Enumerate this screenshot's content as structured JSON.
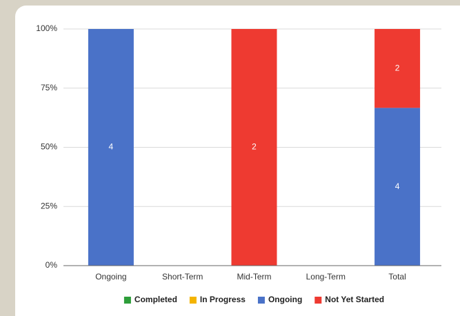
{
  "chart_data": {
    "type": "bar",
    "stacking": "percent",
    "categories": [
      "Ongoing",
      "Short-Term",
      "Mid-Term",
      "Long-Term",
      "Total"
    ],
    "series": [
      {
        "name": "Completed",
        "color": "#2e9e3a",
        "values": [
          0,
          0,
          0,
          0,
          0
        ]
      },
      {
        "name": "In Progress",
        "color": "#f4b400",
        "values": [
          0,
          0,
          0,
          0,
          0
        ]
      },
      {
        "name": "Ongoing",
        "color": "#4a72c8",
        "values": [
          4,
          0,
          0,
          0,
          4
        ]
      },
      {
        "name": "Not Yet Started",
        "color": "#ee3a31",
        "values": [
          0,
          0,
          2,
          0,
          2
        ]
      }
    ],
    "ylim": [
      0,
      100
    ],
    "yticks": [
      {
        "value": 0,
        "label": "0%"
      },
      {
        "value": 25,
        "label": "25%"
      },
      {
        "value": 50,
        "label": "50%"
      },
      {
        "value": 75,
        "label": "75%"
      },
      {
        "value": 100,
        "label": "100%"
      }
    ],
    "grid": true,
    "legend": "bottom"
  }
}
